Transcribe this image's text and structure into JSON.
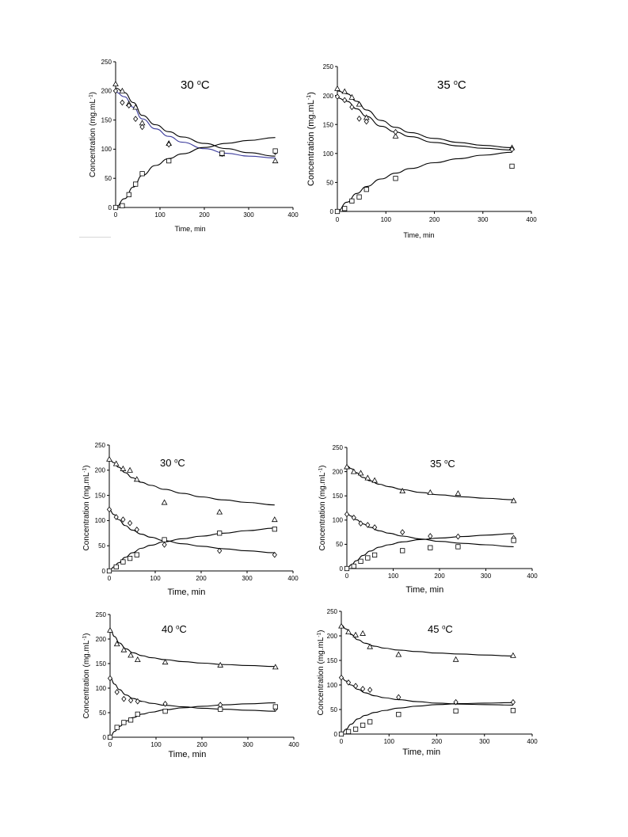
{
  "chart_data": [
    {
      "type": "scatter",
      "title": "30 °C",
      "xlabel": "Time, min",
      "ylabel": "Concentration (mg.mL-1)",
      "xlim": [
        0,
        400
      ],
      "ylim": [
        0,
        250
      ],
      "xticks": [
        0,
        100,
        200,
        300,
        400
      ],
      "yticks": [
        0,
        50,
        100,
        150,
        200,
        250
      ],
      "series": [
        {
          "marker": "triangle",
          "color": "#000000",
          "x": [
            0,
            15,
            30,
            45,
            60,
            120,
            240,
            360
          ],
          "y": [
            212,
            200,
            178,
            172,
            145,
            110,
            92,
            80
          ]
        },
        {
          "marker": "diamond",
          "color": "#000000",
          "x": [
            0,
            15,
            30,
            45,
            60,
            120,
            240,
            360
          ],
          "y": [
            200,
            180,
            175,
            152,
            138,
            108,
            92,
            95
          ]
        },
        {
          "marker": "square",
          "color": "#000000",
          "x": [
            0,
            15,
            30,
            45,
            60,
            120,
            240,
            360
          ],
          "y": [
            0,
            3,
            22,
            40,
            58,
            80,
            93,
            97
          ]
        }
      ],
      "fit_curves": [
        {
          "color": "#000000",
          "x": [
            0,
            20,
            40,
            60,
            90,
            120,
            150,
            200,
            250,
            300,
            360
          ],
          "y": [
            205,
            197,
            180,
            158,
            142,
            130,
            121,
            110,
            101,
            94,
            88
          ]
        },
        {
          "color": "#3b3b9c",
          "x": [
            0,
            20,
            40,
            60,
            90,
            120,
            150,
            200,
            250,
            300,
            360
          ],
          "y": [
            198,
            190,
            172,
            152,
            135,
            122,
            112,
            101,
            93,
            88,
            85
          ]
        },
        {
          "color": "#000000",
          "x": [
            0,
            20,
            40,
            60,
            90,
            120,
            150,
            200,
            250,
            300,
            360
          ],
          "y": [
            0,
            15,
            35,
            55,
            72,
            84,
            92,
            103,
            110,
            115,
            120
          ]
        }
      ]
    },
    {
      "type": "scatter",
      "title": "35 °C",
      "xlabel": "Time, min",
      "ylabel": "Concentration (mg.mL-1)",
      "xlim": [
        0,
        400
      ],
      "ylim": [
        0,
        250
      ],
      "xticks": [
        0,
        100,
        200,
        300,
        400
      ],
      "yticks": [
        0,
        50,
        100,
        150,
        200,
        250
      ],
      "series": [
        {
          "marker": "triangle",
          "color": "#000000",
          "x": [
            0,
            15,
            30,
            45,
            60,
            120,
            360
          ],
          "y": [
            212,
            207,
            197,
            185,
            162,
            130,
            110
          ]
        },
        {
          "marker": "diamond",
          "color": "#000000",
          "x": [
            0,
            15,
            30,
            45,
            60,
            120,
            360
          ],
          "y": [
            198,
            192,
            180,
            160,
            155,
            137,
            107
          ]
        },
        {
          "marker": "square",
          "color": "#000000",
          "x": [
            0,
            15,
            30,
            45,
            60,
            120,
            360
          ],
          "y": [
            0,
            5,
            18,
            25,
            38,
            57,
            78
          ]
        }
      ],
      "fit_curves": [
        {
          "color": "#000000",
          "x": [
            0,
            20,
            40,
            60,
            90,
            120,
            150,
            200,
            250,
            300,
            360
          ],
          "y": [
            208,
            203,
            190,
            175,
            157,
            145,
            136,
            126,
            119,
            114,
            110
          ]
        },
        {
          "color": "#000000",
          "x": [
            0,
            20,
            40,
            60,
            90,
            120,
            150,
            200,
            250,
            300,
            360
          ],
          "y": [
            196,
            190,
            177,
            164,
            147,
            137,
            129,
            119,
            113,
            109,
            106
          ]
        },
        {
          "color": "#000000",
          "x": [
            0,
            20,
            40,
            60,
            90,
            120,
            150,
            200,
            250,
            300,
            360
          ],
          "y": [
            0,
            16,
            31,
            43,
            56,
            66,
            74,
            84,
            91,
            97,
            102
          ]
        }
      ]
    },
    {
      "type": "scatter",
      "title": "30 °C",
      "xlabel": "Time, min",
      "ylabel": "Concentration (mg.mL-1)",
      "xlim": [
        0,
        400
      ],
      "ylim": [
        0,
        250
      ],
      "xticks": [
        0,
        100,
        200,
        300,
        400
      ],
      "yticks": [
        0,
        50,
        100,
        150,
        200,
        250
      ],
      "series": [
        {
          "marker": "triangle",
          "color": "#000000",
          "x": [
            0,
            15,
            30,
            45,
            60,
            120,
            240,
            360
          ],
          "y": [
            222,
            213,
            203,
            200,
            182,
            136,
            117,
            102
          ]
        },
        {
          "marker": "diamond",
          "color": "#000000",
          "x": [
            0,
            15,
            30,
            45,
            60,
            120,
            240,
            360
          ],
          "y": [
            122,
            107,
            102,
            95,
            82,
            52,
            40,
            32
          ]
        },
        {
          "marker": "square",
          "color": "#000000",
          "x": [
            0,
            15,
            30,
            45,
            60,
            120,
            240,
            360
          ],
          "y": [
            0,
            8,
            18,
            25,
            32,
            62,
            75,
            83
          ]
        }
      ],
      "fit_curves": [
        {
          "color": "#000000",
          "x": [
            0,
            10,
            20,
            35,
            50,
            70,
            90,
            120,
            160,
            200,
            250,
            300,
            360
          ],
          "y": [
            222,
            215,
            206,
            195,
            185,
            176,
            170,
            162,
            154,
            147,
            141,
            136,
            131
          ]
        },
        {
          "color": "#000000",
          "x": [
            0,
            10,
            20,
            35,
            50,
            70,
            90,
            120,
            160,
            200,
            250,
            300,
            360
          ],
          "y": [
            122,
            112,
            102,
            90,
            81,
            73,
            67,
            60,
            54,
            49,
            44,
            40,
            36
          ]
        },
        {
          "color": "#000000",
          "x": [
            0,
            10,
            20,
            35,
            50,
            70,
            90,
            120,
            160,
            200,
            250,
            300,
            360
          ],
          "y": [
            0,
            8,
            16,
            27,
            36,
            45,
            51,
            58,
            64,
            69,
            75,
            80,
            85
          ]
        }
      ]
    },
    {
      "type": "scatter",
      "title": "35 °C",
      "xlabel": "Time, min",
      "ylabel": "Concentration (mg.mL-1)",
      "xlim": [
        0,
        400
      ],
      "ylim": [
        0,
        250
      ],
      "xticks": [
        0,
        100,
        200,
        300,
        400
      ],
      "yticks": [
        0,
        50,
        100,
        150,
        200,
        250
      ],
      "series": [
        {
          "marker": "triangle",
          "color": "#000000",
          "x": [
            0,
            15,
            30,
            45,
            60,
            120,
            180,
            240,
            360
          ],
          "y": [
            210,
            200,
            197,
            187,
            182,
            160,
            157,
            155,
            140
          ]
        },
        {
          "marker": "diamond",
          "color": "#000000",
          "x": [
            0,
            15,
            30,
            45,
            60,
            120,
            180,
            240,
            360
          ],
          "y": [
            112,
            105,
            93,
            90,
            85,
            75,
            67,
            66,
            63
          ]
        },
        {
          "marker": "square",
          "color": "#000000",
          "x": [
            0,
            15,
            30,
            45,
            60,
            120,
            180,
            240,
            360
          ],
          "y": [
            0,
            5,
            15,
            22,
            28,
            37,
            43,
            45,
            58
          ]
        }
      ],
      "fit_curves": [
        {
          "color": "#000000",
          "x": [
            0,
            10,
            20,
            35,
            50,
            70,
            90,
            120,
            160,
            200,
            250,
            300,
            360
          ],
          "y": [
            212,
            206,
            198,
            188,
            181,
            174,
            169,
            163,
            157,
            152,
            148,
            145,
            142
          ]
        },
        {
          "color": "#000000",
          "x": [
            0,
            10,
            20,
            35,
            50,
            70,
            90,
            120,
            160,
            200,
            250,
            300,
            360
          ],
          "y": [
            113,
            108,
            101,
            92,
            85,
            78,
            73,
            67,
            61,
            56,
            52,
            49,
            45
          ]
        },
        {
          "color": "#000000",
          "x": [
            0,
            10,
            20,
            35,
            50,
            70,
            90,
            120,
            160,
            200,
            250,
            300,
            360
          ],
          "y": [
            0,
            8,
            16,
            27,
            36,
            44,
            49,
            55,
            60,
            63,
            66,
            69,
            72
          ]
        }
      ]
    },
    {
      "type": "scatter",
      "title": "40 °C",
      "xlabel": "Time, min",
      "ylabel": "Concentration (mg.mL-1)",
      "xlim": [
        0,
        400
      ],
      "ylim": [
        0,
        250
      ],
      "xticks": [
        0,
        100,
        200,
        300,
        400
      ],
      "yticks": [
        0,
        50,
        100,
        150,
        200,
        250
      ],
      "series": [
        {
          "marker": "triangle",
          "color": "#000000",
          "x": [
            0,
            15,
            30,
            45,
            60,
            120,
            240,
            360
          ],
          "y": [
            218,
            190,
            178,
            167,
            158,
            153,
            147,
            143
          ]
        },
        {
          "marker": "diamond",
          "color": "#000000",
          "x": [
            0,
            15,
            30,
            45,
            60,
            120,
            240,
            360
          ],
          "y": [
            120,
            92,
            78,
            75,
            73,
            68,
            66,
            58
          ]
        },
        {
          "marker": "square",
          "color": "#000000",
          "x": [
            0,
            15,
            30,
            45,
            60,
            120,
            240,
            360
          ],
          "y": [
            0,
            20,
            30,
            35,
            47,
            53,
            57,
            62
          ]
        }
      ],
      "fit_curves": [
        {
          "color": "#000000",
          "x": [
            0,
            10,
            20,
            35,
            50,
            70,
            90,
            120,
            160,
            200,
            250,
            300,
            360
          ],
          "y": [
            220,
            205,
            192,
            180,
            172,
            166,
            162,
            158,
            154,
            151,
            148,
            146,
            144
          ]
        },
        {
          "color": "#000000",
          "x": [
            0,
            10,
            20,
            35,
            50,
            70,
            90,
            120,
            160,
            200,
            250,
            300,
            360
          ],
          "y": [
            122,
            108,
            97,
            86,
            79,
            73,
            69,
            65,
            62,
            59,
            57,
            55,
            53
          ]
        },
        {
          "color": "#000000",
          "x": [
            0,
            10,
            20,
            35,
            50,
            70,
            90,
            120,
            160,
            200,
            250,
            300,
            360
          ],
          "y": [
            0,
            12,
            22,
            33,
            40,
            47,
            51,
            56,
            60,
            63,
            66,
            68,
            70
          ]
        }
      ]
    },
    {
      "type": "scatter",
      "title": "45 °C",
      "xlabel": "Time, min",
      "ylabel": "Concentration (mg.mL-1)",
      "xlim": [
        0,
        400
      ],
      "ylim": [
        0,
        250
      ],
      "xticks": [
        0,
        100,
        200,
        300,
        400
      ],
      "yticks": [
        0,
        50,
        100,
        150,
        200,
        250
      ],
      "series": [
        {
          "marker": "triangle",
          "color": "#000000",
          "x": [
            0,
            15,
            30,
            45,
            60,
            120,
            240,
            360
          ],
          "y": [
            220,
            208,
            202,
            205,
            178,
            162,
            152,
            160
          ]
        },
        {
          "marker": "diamond",
          "color": "#000000",
          "x": [
            0,
            15,
            30,
            45,
            60,
            120,
            240,
            360
          ],
          "y": [
            115,
            105,
            98,
            92,
            90,
            75,
            65,
            65
          ]
        },
        {
          "marker": "square",
          "color": "#000000",
          "x": [
            0,
            15,
            30,
            45,
            60,
            120,
            240,
            360
          ],
          "y": [
            0,
            5,
            10,
            18,
            25,
            40,
            47,
            48
          ]
        }
      ],
      "fit_curves": [
        {
          "color": "#000000",
          "x": [
            0,
            10,
            20,
            35,
            50,
            70,
            90,
            120,
            160,
            200,
            250,
            300,
            360
          ],
          "y": [
            222,
            214,
            203,
            192,
            185,
            179,
            175,
            171,
            168,
            165,
            163,
            161,
            159
          ]
        },
        {
          "color": "#000000",
          "x": [
            0,
            10,
            20,
            35,
            50,
            70,
            90,
            120,
            160,
            200,
            250,
            300,
            360
          ],
          "y": [
            115,
            108,
            100,
            91,
            84,
            78,
            74,
            70,
            66,
            63,
            61,
            60,
            59
          ]
        },
        {
          "color": "#000000",
          "x": [
            0,
            10,
            20,
            35,
            50,
            70,
            90,
            120,
            160,
            200,
            250,
            300,
            360
          ],
          "y": [
            0,
            10,
            20,
            31,
            38,
            44,
            48,
            53,
            57,
            60,
            62,
            63,
            64
          ]
        }
      ]
    }
  ]
}
